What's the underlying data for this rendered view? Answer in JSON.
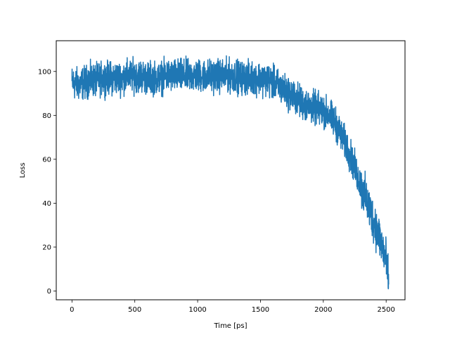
{
  "chart_data": {
    "type": "line",
    "title": "",
    "xlabel": "Time [ps]",
    "ylabel": "Loss",
    "xlim": [
      -125,
      2650
    ],
    "ylim": [
      -4,
      114
    ],
    "xticks": [
      0,
      500,
      1000,
      1500,
      2000,
      2500
    ],
    "yticks": [
      0,
      20,
      40,
      60,
      80,
      100
    ],
    "grid": false,
    "legend": "none",
    "series": [
      {
        "color": "#1f77b4",
        "x": [
          0,
          50,
          100,
          150,
          200,
          250,
          300,
          350,
          400,
          450,
          500,
          550,
          600,
          650,
          700,
          750,
          800,
          850,
          900,
          950,
          1000,
          1050,
          1100,
          1150,
          1200,
          1250,
          1300,
          1350,
          1400,
          1450,
          1500,
          1550,
          1600,
          1650,
          1700,
          1750,
          1800,
          1850,
          1900,
          1950,
          2000,
          2050,
          2100,
          2150,
          2200,
          2250,
          2300,
          2350,
          2400,
          2450,
          2500,
          2520
        ],
        "y": [
          95,
          94,
          95,
          96,
          96,
          97,
          97,
          97,
          97,
          98,
          98,
          98,
          97,
          97,
          97,
          98,
          98,
          98,
          98,
          98,
          98,
          98,
          98,
          98,
          98,
          98,
          98,
          97,
          97,
          97,
          97,
          96,
          95,
          93,
          91,
          89,
          87,
          85,
          84,
          83,
          82,
          80,
          76,
          70,
          64,
          56,
          48,
          40,
          32,
          24,
          14,
          3
        ],
        "noise": 4.5
      }
    ]
  }
}
